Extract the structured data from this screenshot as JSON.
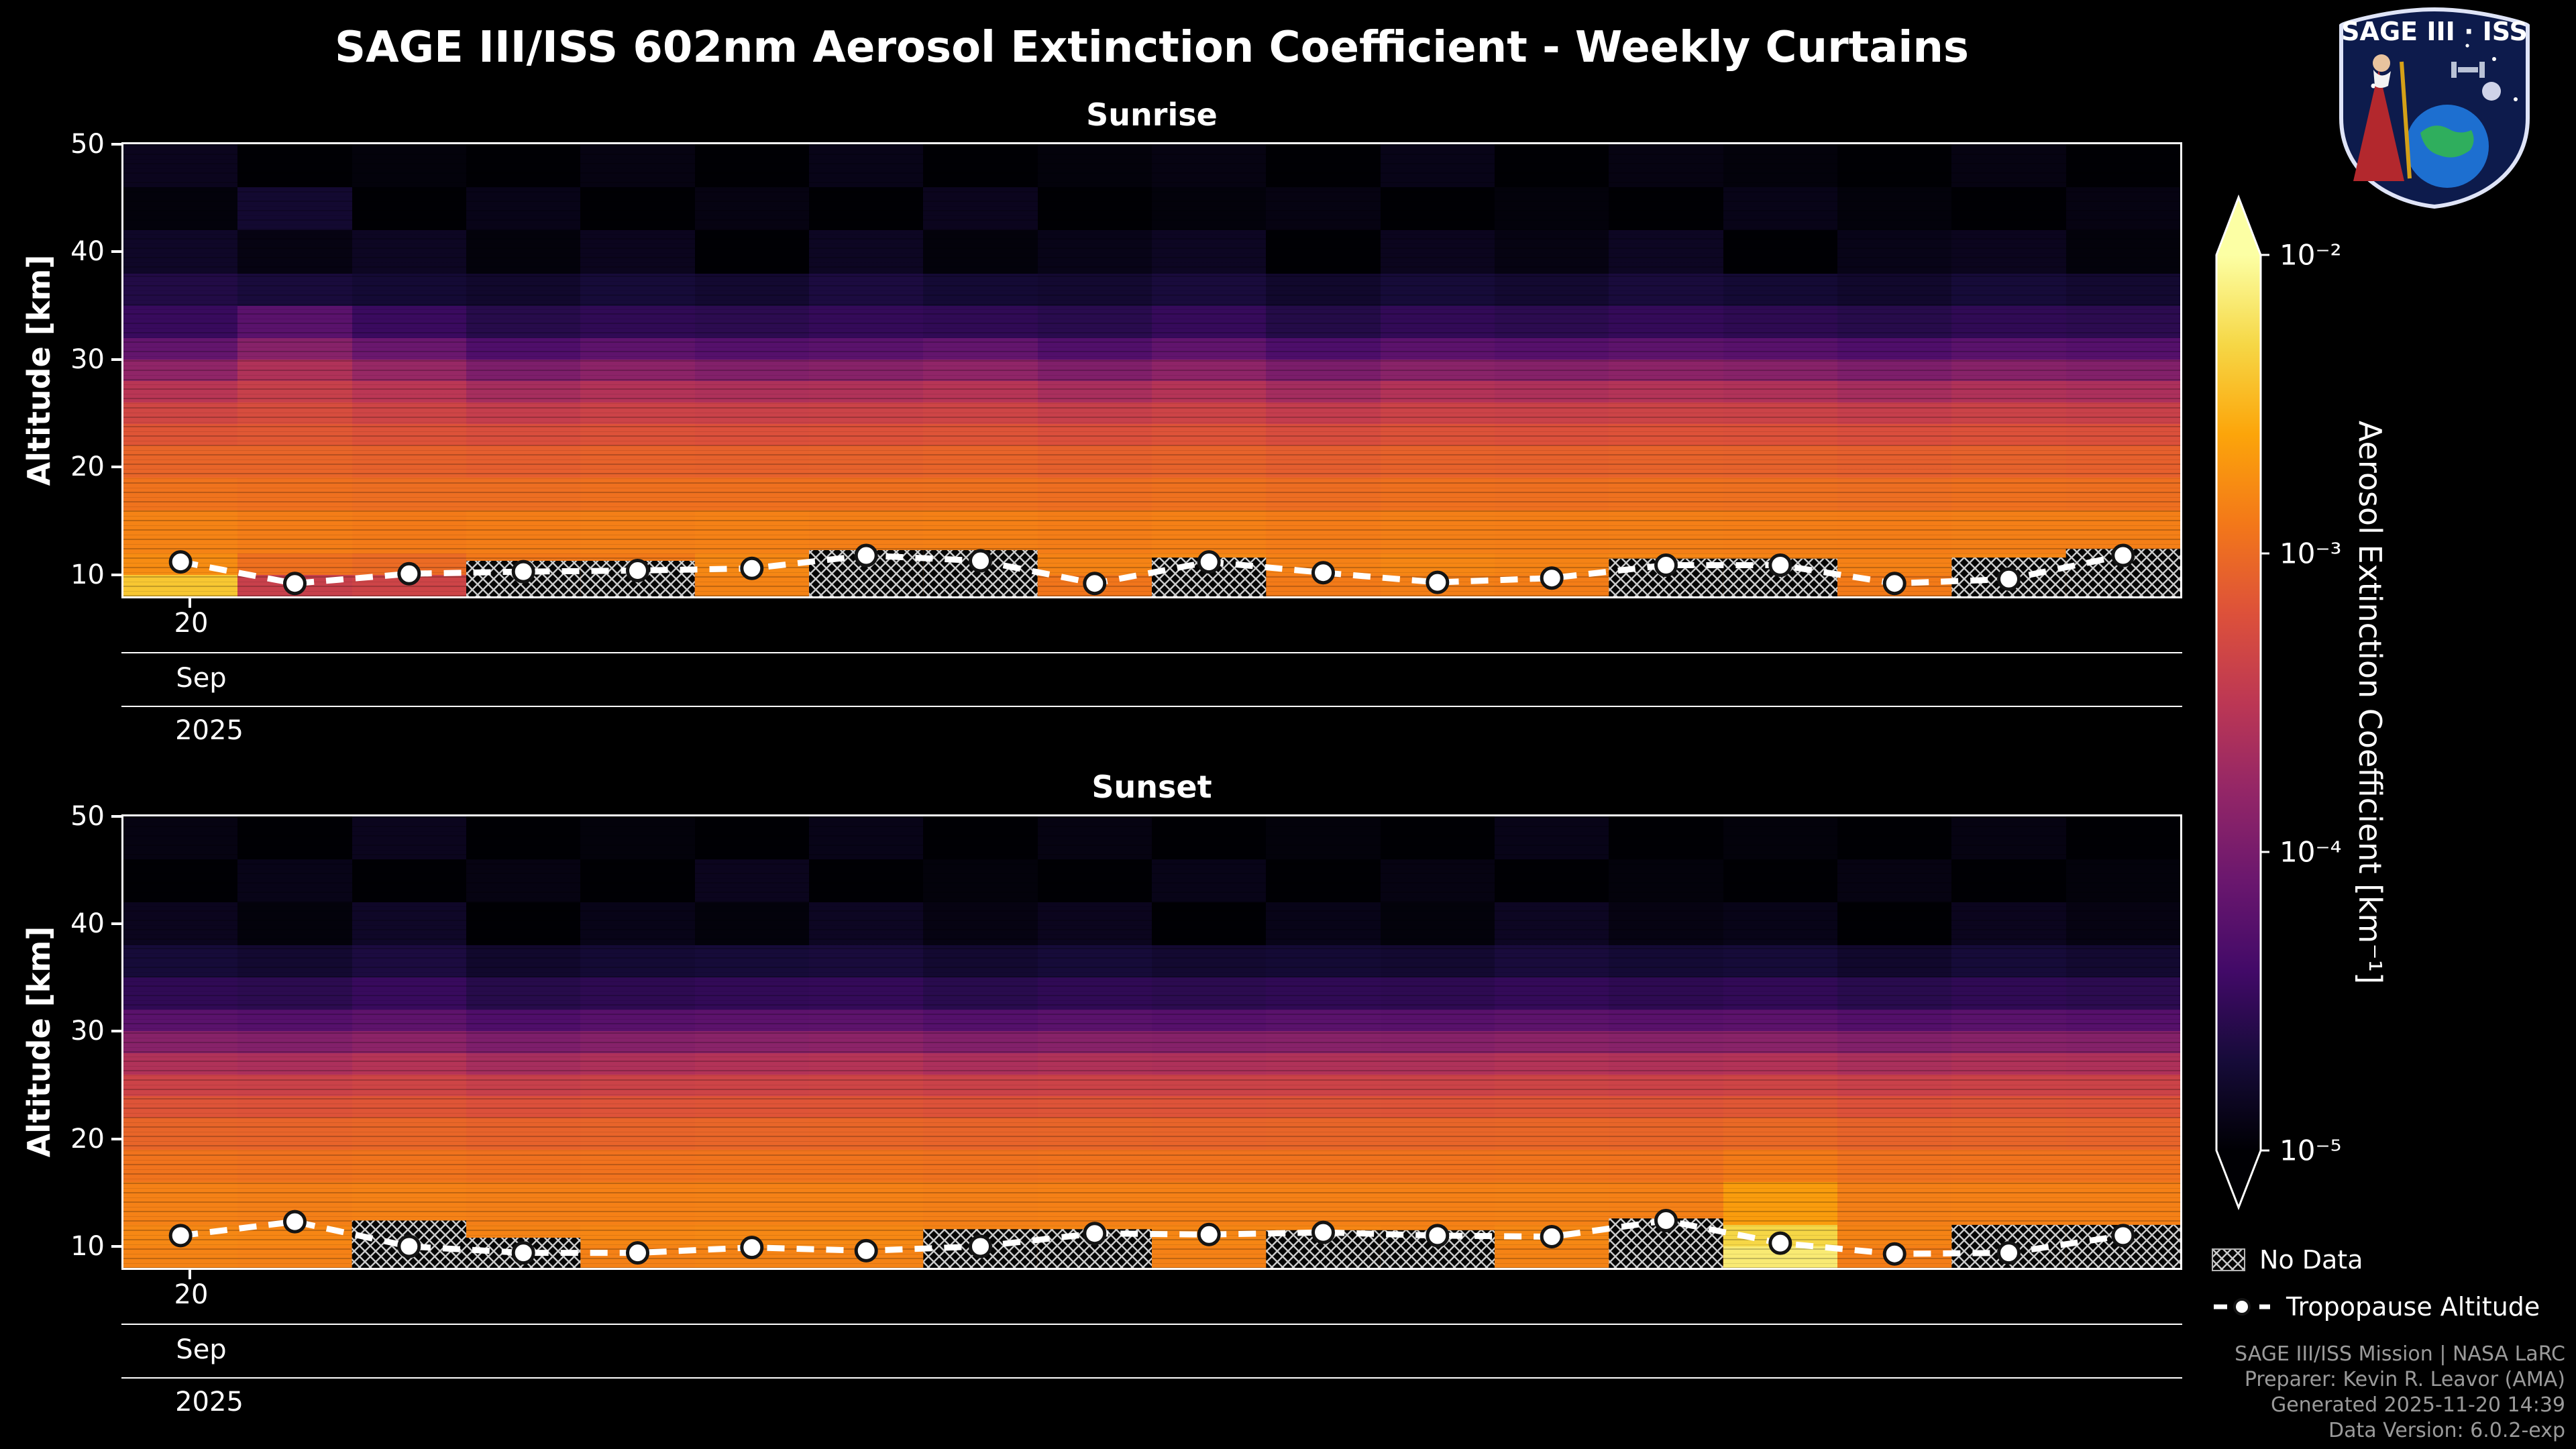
{
  "title": "SAGE III/ISS 602nm Aerosol Extinction Coefficient - Weekly Curtains",
  "logo": {
    "title": "SAGE III · ISS"
  },
  "axes": {
    "y_label": "Altitude [km]",
    "y_ticks": [
      50,
      40,
      30,
      20,
      10
    ],
    "x_day": "20",
    "x_month": "Sep",
    "x_year": "2025"
  },
  "colorbar": {
    "label": "Aerosol Extinction Coefficient [km⁻¹]",
    "ticks": [
      "10⁻²",
      "10⁻³",
      "10⁻⁴",
      "10⁻⁵"
    ]
  },
  "legend": {
    "no_data": "No Data",
    "tropopause": "Tropopause Altitude"
  },
  "attribution": [
    "SAGE III/ISS Mission | NASA LaRC",
    "Preparer: Kevin R. Leavor (AMA)",
    "Generated 2025-11-20 14:39",
    "Data Version: 6.0.2-exp"
  ],
  "chart_data": {
    "type": "heatmap",
    "title": "SAGE III/ISS 602nm Aerosol Extinction Coefficient - Weekly Curtains",
    "ylabel": "Altitude [km]",
    "x_tick_labels": [
      "20",
      "Sep",
      "2025"
    ],
    "alt_range": [
      8,
      50
    ],
    "log_range": [
      -5,
      -2
    ],
    "colorbar_range_km-1": [
      1e-05,
      0.01
    ],
    "alt_edges": [
      50,
      46,
      42,
      38,
      35,
      32,
      30,
      28,
      26,
      24,
      22,
      19,
      16,
      12,
      10,
      8
    ],
    "colormap": [
      [
        0.0,
        "#000004"
      ],
      [
        0.1,
        "#160b39"
      ],
      [
        0.2,
        "#420a68"
      ],
      [
        0.3,
        "#6a176e"
      ],
      [
        0.4,
        "#932667"
      ],
      [
        0.5,
        "#bc3754"
      ],
      [
        0.6,
        "#dd513a"
      ],
      [
        0.7,
        "#f37819"
      ],
      [
        0.8,
        "#fca50a"
      ],
      [
        0.9,
        "#f6d746"
      ],
      [
        1.0,
        "#fcffa4"
      ]
    ],
    "panels": [
      {
        "title": "Sunrise",
        "columns": [
          {
            "tropopause_km": 11.2,
            "no_data_below_km": null,
            "ext": [
              1.4e-05,
              1.1e-05,
              1.6e-05,
              2.4e-05,
              3.4e-05,
              7e-05,
              0.00015,
              0.0003,
              0.00048,
              0.00068,
              0.0009,
              0.00115,
              0.0015,
              0.0017,
              0.004
            ]
          },
          {
            "tropopause_km": 9.2,
            "no_data_below_km": null,
            "ext": [
              1e-05,
              1.8e-05,
              1.2e-05,
              2.1e-05,
              6e-05,
              0.00013,
              0.00026,
              0.0004,
              0.00056,
              0.00072,
              0.0009,
              0.0011,
              0.00135,
              0.0011,
              0.0004
            ]
          },
          {
            "tropopause_km": 10.1,
            "no_data_below_km": null,
            "ext": [
              1.1e-05,
              1e-05,
              1.5e-05,
              1.9e-05,
              3.5e-05,
              8e-05,
              0.00017,
              0.00031,
              0.00046,
              0.00064,
              0.00084,
              0.00105,
              0.0013,
              0.001,
              0.00045
            ]
          },
          {
            "tropopause_km": 10.3,
            "no_data_below_km": 11.3,
            "ext": [
              1e-05,
              1.3e-05,
              1.1e-05,
              1.7e-05,
              2.6e-05,
              5e-05,
              0.00011,
              0.00022,
              0.00038,
              0.00058,
              0.0008,
              0.00105,
              0.00135,
              0.00125,
              0.0009
            ]
          },
          {
            "tropopause_km": 10.4,
            "no_data_below_km": 11.3,
            "ext": [
              1.2e-05,
              1e-05,
              1.4e-05,
              2e-05,
              3e-05,
              6.5e-05,
              0.00014,
              0.00027,
              0.00044,
              0.00064,
              0.00086,
              0.0011,
              0.0014,
              0.0013,
              0.001
            ]
          },
          {
            "tropopause_km": 10.6,
            "no_data_below_km": null,
            "ext": [
              1e-05,
              1.2e-05,
              1e-05,
              1.8e-05,
              2.8e-05,
              5.5e-05,
              0.00012,
              0.00025,
              0.00042,
              0.00062,
              0.00084,
              0.0011,
              0.00145,
              0.0016,
              0.0015
            ]
          },
          {
            "tropopause_km": 11.8,
            "no_data_below_km": 12.3,
            "ext": [
              1.3e-05,
              1e-05,
              1.5e-05,
              2.2e-05,
              3.2e-05,
              6e-05,
              0.00013,
              0.00026,
              0.00043,
              0.00063,
              0.00085,
              0.0011,
              0.0014,
              0.00155,
              0.00145
            ]
          },
          {
            "tropopause_km": 11.3,
            "no_data_below_km": 12.3,
            "ext": [
              1e-05,
              1.4e-05,
              1.1e-05,
              1.9e-05,
              3e-05,
              7e-05,
              0.00015,
              0.00029,
              0.00046,
              0.00066,
              0.00088,
              0.00112,
              0.00142,
              0.0016,
              0.0015
            ]
          },
          {
            "tropopause_km": 9.2,
            "no_data_below_km": null,
            "ext": [
              1.1e-05,
              1e-05,
              1.3e-05,
              1.8e-05,
              2.7e-05,
              5.2e-05,
              0.000115,
              0.00023,
              0.0004,
              0.0006,
              0.00082,
              0.00106,
              0.00136,
              0.0015,
              0.0012
            ]
          },
          {
            "tropopause_km": 11.2,
            "no_data_below_km": 11.6,
            "ext": [
              1.2e-05,
              1.1e-05,
              1.5e-05,
              2.1e-05,
              3.3e-05,
              6.8e-05,
              0.000145,
              0.00028,
              0.00045,
              0.00065,
              0.00087,
              0.00112,
              0.00142,
              0.0016,
              0.0015
            ]
          },
          {
            "tropopause_km": 10.2,
            "no_data_below_km": null,
            "ext": [
              1e-05,
              1.2e-05,
              1e-05,
              1.7e-05,
              2.5e-05,
              4.8e-05,
              0.000105,
              0.00021,
              0.00037,
              0.00057,
              0.00079,
              0.00104,
              0.00134,
              0.00145,
              0.0013
            ]
          },
          {
            "tropopause_km": 9.3,
            "no_data_below_km": null,
            "ext": [
              1.3e-05,
              1e-05,
              1.4e-05,
              2e-05,
              3.1e-05,
              6.2e-05,
              0.000135,
              0.00027,
              0.00044,
              0.00064,
              0.00086,
              0.0011,
              0.0014,
              0.00155,
              0.0014
            ]
          },
          {
            "tropopause_km": 9.7,
            "no_data_below_km": null,
            "ext": [
              1e-05,
              1.1e-05,
              1.2e-05,
              1.8e-05,
              2.8e-05,
              5.6e-05,
              0.000125,
              0.00025,
              0.00042,
              0.00062,
              0.00084,
              0.00108,
              0.00138,
              0.0015,
              0.00135
            ]
          },
          {
            "tropopause_km": 10.9,
            "no_data_below_km": 11.5,
            "ext": [
              1.2e-05,
              1e-05,
              1.5e-05,
              2.1e-05,
              3.2e-05,
              6.4e-05,
              0.00014,
              0.000275,
              0.000445,
              0.000645,
              0.000865,
              0.00111,
              0.00141,
              0.00155,
              0.00145
            ]
          },
          {
            "tropopause_km": 10.9,
            "no_data_below_km": 11.5,
            "ext": [
              1.1e-05,
              1.3e-05,
              1e-05,
              1.9e-05,
              2.9e-05,
              5.8e-05,
              0.00013,
              0.00026,
              0.00043,
              0.00063,
              0.00085,
              0.00109,
              0.00139,
              0.0015,
              0.0014
            ]
          },
          {
            "tropopause_km": 9.2,
            "no_data_below_km": null,
            "ext": [
              1e-05,
              1.1e-05,
              1.3e-05,
              1.7e-05,
              2.6e-05,
              5e-05,
              0.00011,
              0.00022,
              0.00039,
              0.00059,
              0.00081,
              0.00105,
              0.00135,
              0.00145,
              0.0013
            ]
          },
          {
            "tropopause_km": 9.6,
            "no_data_below_km": 11.6,
            "ext": [
              1.2e-05,
              1e-05,
              1.4e-05,
              2e-05,
              3e-05,
              6e-05,
              0.00013,
              0.00026,
              0.00043,
              0.00063,
              0.00085,
              0.0011,
              0.0014,
              0.00155,
              0.00145
            ]
          },
          {
            "tropopause_km": 11.8,
            "no_data_below_km": 12.4,
            "ext": [
              1e-05,
              1.2e-05,
              1.1e-05,
              1.8e-05,
              2.8e-05,
              5.5e-05,
              0.00012,
              0.00024,
              0.00041,
              0.00061,
              0.00083,
              0.00108,
              0.0014,
              0.0016,
              0.0015
            ]
          }
        ]
      },
      {
        "title": "Sunset",
        "columns": [
          {
            "tropopause_km": 11.0,
            "no_data_below_km": null,
            "ext": [
              1.2e-05,
              1e-05,
              1.4e-05,
              2e-05,
              3e-05,
              6e-05,
              0.00013,
              0.00026,
              0.00044,
              0.00066,
              0.0009,
              0.00115,
              0.00145,
              0.0016,
              0.0015
            ]
          },
          {
            "tropopause_km": 12.3,
            "no_data_below_km": null,
            "ext": [
              1e-05,
              1.3e-05,
              1.1e-05,
              1.8e-05,
              2.8e-05,
              5.5e-05,
              0.00012,
              0.00024,
              0.00042,
              0.00064,
              0.00088,
              0.00112,
              0.0014,
              0.00155,
              0.00145
            ]
          },
          {
            "tropopause_km": 10.0,
            "no_data_below_km": 12.4,
            "ext": [
              1.4e-05,
              1e-05,
              1.6e-05,
              2.2e-05,
              3.4e-05,
              6.5e-05,
              0.00014,
              0.00028,
              0.00046,
              0.00068,
              0.00092,
              0.00116,
              0.00145,
              0.0015,
              0.0014
            ]
          },
          {
            "tropopause_km": 9.4,
            "no_data_below_km": 10.8,
            "ext": [
              1e-05,
              1.2e-05,
              1e-05,
              1.7e-05,
              2.6e-05,
              5e-05,
              0.00011,
              0.00022,
              0.0004,
              0.00062,
              0.00086,
              0.0011,
              0.0014,
              0.0015,
              0.0013
            ]
          },
          {
            "tropopause_km": 9.4,
            "no_data_below_km": null,
            "ext": [
              1.1e-05,
              1e-05,
              1.3e-05,
              1.9e-05,
              2.9e-05,
              5.8e-05,
              0.000125,
              0.00025,
              0.00043,
              0.00065,
              0.00089,
              0.00113,
              0.00142,
              0.00155,
              0.00145
            ]
          },
          {
            "tropopause_km": 9.9,
            "no_data_below_km": null,
            "ext": [
              1e-05,
              1.4e-05,
              1.1e-05,
              2e-05,
              3.1e-05,
              6.2e-05,
              0.000135,
              0.00027,
              0.00045,
              0.00067,
              0.00091,
              0.00115,
              0.00144,
              0.0016,
              0.0015
            ]
          },
          {
            "tropopause_km": 9.6,
            "no_data_below_km": null,
            "ext": [
              1.3e-05,
              1e-05,
              1.5e-05,
              2.1e-05,
              3.2e-05,
              6.4e-05,
              0.00014,
              0.00028,
              0.00046,
              0.00068,
              0.00092,
              0.00116,
              0.00145,
              0.0016,
              0.0015
            ]
          },
          {
            "tropopause_km": 10.0,
            "no_data_below_km": 11.6,
            "ext": [
              1e-05,
              1.1e-05,
              1.2e-05,
              1.8e-05,
              2.7e-05,
              5.4e-05,
              0.00012,
              0.00024,
              0.00042,
              0.00064,
              0.00088,
              0.00112,
              0.0014,
              0.0015,
              0.0014
            ]
          },
          {
            "tropopause_km": 11.2,
            "no_data_below_km": 11.6,
            "ext": [
              1.2e-05,
              1e-05,
              1.4e-05,
              2e-05,
              3e-05,
              6e-05,
              0.00013,
              0.00026,
              0.00044,
              0.00066,
              0.0009,
              0.00114,
              0.00143,
              0.00155,
              0.00145
            ]
          },
          {
            "tropopause_km": 11.1,
            "no_data_below_km": null,
            "ext": [
              1e-05,
              1.3e-05,
              1e-05,
              1.8e-05,
              2.8e-05,
              5.6e-05,
              0.000125,
              0.00025,
              0.00043,
              0.00065,
              0.00089,
              0.00113,
              0.00142,
              0.00155,
              0.00145
            ]
          },
          {
            "tropopause_km": 11.3,
            "no_data_below_km": 11.5,
            "ext": [
              1.1e-05,
              1e-05,
              1.3e-05,
              1.9e-05,
              3e-05,
              6e-05,
              0.00013,
              0.00026,
              0.00044,
              0.00066,
              0.0009,
              0.00114,
              0.00143,
              0.00155,
              0.00145
            ]
          },
          {
            "tropopause_km": 11.0,
            "no_data_below_km": 11.5,
            "ext": [
              1e-05,
              1.2e-05,
              1.1e-05,
              1.8e-05,
              2.9e-05,
              5.8e-05,
              0.000128,
              0.000255,
              0.000435,
              0.000655,
              0.000895,
              0.00113,
              0.00142,
              0.0015,
              0.0014
            ]
          },
          {
            "tropopause_km": 10.9,
            "no_data_below_km": null,
            "ext": [
              1.3e-05,
              1e-05,
              1.5e-05,
              2.1e-05,
              3.2e-05,
              6.3e-05,
              0.000138,
              0.000275,
              0.000455,
              0.000675,
              0.000915,
              0.00115,
              0.00144,
              0.0016,
              0.0015
            ]
          },
          {
            "tropopause_km": 12.4,
            "no_data_below_km": 12.6,
            "ext": [
              1e-05,
              1.1e-05,
              1.2e-05,
              1.9e-05,
              2.9e-05,
              5.9e-05,
              0.00013,
              0.00026,
              0.00044,
              0.00066,
              0.0009,
              0.00114,
              0.00143,
              0.00155,
              0.00145
            ]
          },
          {
            "tropopause_km": 10.3,
            "no_data_below_km": null,
            "ext": [
              1.1e-05,
              1e-05,
              1.3e-05,
              2e-05,
              3.1e-05,
              6.2e-05,
              0.000135,
              0.00027,
              0.00046,
              0.0007,
              0.00096,
              0.0013,
              0.0022,
              0.005,
              0.007
            ]
          },
          {
            "tropopause_km": 9.3,
            "no_data_below_km": null,
            "ext": [
              1e-05,
              1.2e-05,
              1e-05,
              1.7e-05,
              2.7e-05,
              5.3e-05,
              0.000118,
              0.000235,
              0.000415,
              0.000635,
              0.000875,
              0.00111,
              0.0014,
              0.0015,
              0.00135
            ]
          },
          {
            "tropopause_km": 9.4,
            "no_data_below_km": 12.0,
            "ext": [
              1.2e-05,
              1e-05,
              1.4e-05,
              2e-05,
              3e-05,
              6e-05,
              0.00013,
              0.00026,
              0.00044,
              0.00066,
              0.0009,
              0.00114,
              0.00143,
              0.00155,
              0.00145
            ]
          },
          {
            "tropopause_km": 11.0,
            "no_data_below_km": 12.0,
            "ext": [
              1e-05,
              1.1e-05,
              1.2e-05,
              1.8e-05,
              2.8e-05,
              5.6e-05,
              0.000124,
              0.00025,
              0.00043,
              0.00065,
              0.00089,
              0.00113,
              0.00142,
              0.00155,
              0.00145
            ]
          }
        ]
      }
    ]
  }
}
